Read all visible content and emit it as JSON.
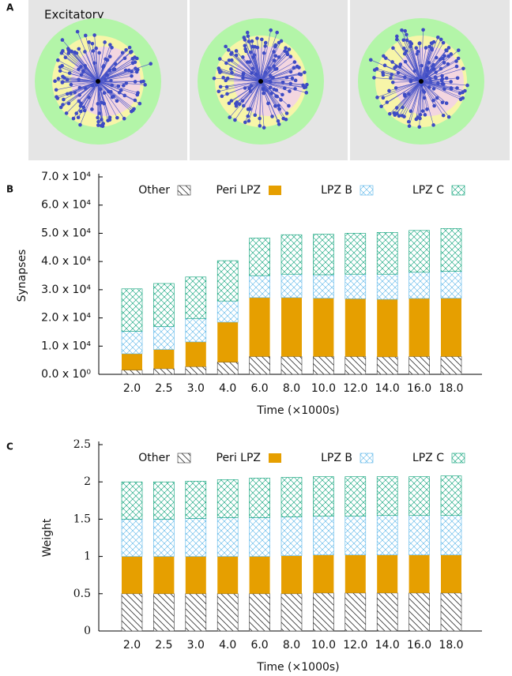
{
  "panel_labels": [
    "A",
    "B",
    "C"
  ],
  "panel_a": {
    "title": "Excitatory"
  },
  "chart_data": [
    {
      "type": "stacked_bar",
      "ylabel": "Synapses",
      "xlabel": "Time (×1000s)",
      "categories": [
        "2.0",
        "2.5",
        "3.0",
        "4.0",
        "6.0",
        "8.0",
        "10.0",
        "12.0",
        "14.0",
        "16.0",
        "18.0"
      ],
      "series": [
        {
          "name": "Other",
          "color": "#333333",
          "pattern": "hatch",
          "values": [
            1500,
            2000,
            2700,
            4300,
            6300,
            6300,
            6300,
            6300,
            6200,
            6300,
            6300
          ]
        },
        {
          "name": "Peri LPZ",
          "color": "#e69f00",
          "pattern": "solid",
          "values": [
            5800,
            6800,
            8800,
            14200,
            20900,
            20900,
            20700,
            20500,
            20400,
            20600,
            20700
          ]
        },
        {
          "name": "LPZ B",
          "color": "#56b4e9",
          "pattern": "cross",
          "values": [
            8000,
            8200,
            8300,
            7500,
            7800,
            8300,
            8300,
            8700,
            8900,
            9300,
            9500
          ]
        },
        {
          "name": "LPZ C",
          "color": "#009e73",
          "pattern": "cross",
          "values": [
            15000,
            15200,
            14700,
            14300,
            13300,
            14000,
            14400,
            14500,
            14800,
            14800,
            15200
          ]
        }
      ],
      "ylim": [
        0,
        70000
      ],
      "yticks": [
        {
          "value": 0,
          "label": "0.0 x 10⁰"
        },
        {
          "value": 10000,
          "label": "1.0 x 10⁴"
        },
        {
          "value": 20000,
          "label": "2.0 x 10⁴"
        },
        {
          "value": 30000,
          "label": "3.0 x 10⁴"
        },
        {
          "value": 40000,
          "label": "4.0 x 10⁴"
        },
        {
          "value": 50000,
          "label": "5.0 x 10⁴"
        },
        {
          "value": 60000,
          "label": "6.0 x 10⁴"
        },
        {
          "value": 70000,
          "label": "7.0 x 10⁴"
        }
      ]
    },
    {
      "type": "stacked_bar",
      "ylabel": "Weight",
      "xlabel": "Time (×1000s)",
      "categories": [
        "2.0",
        "2.5",
        "3.0",
        "4.0",
        "6.0",
        "8.0",
        "10.0",
        "12.0",
        "14.0",
        "16.0",
        "18.0"
      ],
      "series": [
        {
          "name": "Other",
          "color": "#333333",
          "pattern": "hatch",
          "values": [
            0.5,
            0.5,
            0.5,
            0.5,
            0.5,
            0.5,
            0.51,
            0.51,
            0.51,
            0.51,
            0.51
          ]
        },
        {
          "name": "Peri LPZ",
          "color": "#e69f00",
          "pattern": "solid",
          "values": [
            0.5,
            0.5,
            0.5,
            0.5,
            0.5,
            0.51,
            0.51,
            0.51,
            0.51,
            0.51,
            0.51
          ]
        },
        {
          "name": "LPZ B",
          "color": "#56b4e9",
          "pattern": "cross",
          "values": [
            0.5,
            0.5,
            0.51,
            0.52,
            0.52,
            0.52,
            0.52,
            0.52,
            0.53,
            0.53,
            0.53
          ]
        },
        {
          "name": "LPZ C",
          "color": "#009e73",
          "pattern": "cross",
          "values": [
            0.5,
            0.5,
            0.5,
            0.51,
            0.53,
            0.53,
            0.53,
            0.53,
            0.52,
            0.52,
            0.53
          ]
        }
      ],
      "ylim": [
        0,
        2.5
      ],
      "yticks": [
        0,
        0.5,
        1,
        1.5,
        2,
        2.5
      ]
    }
  ]
}
